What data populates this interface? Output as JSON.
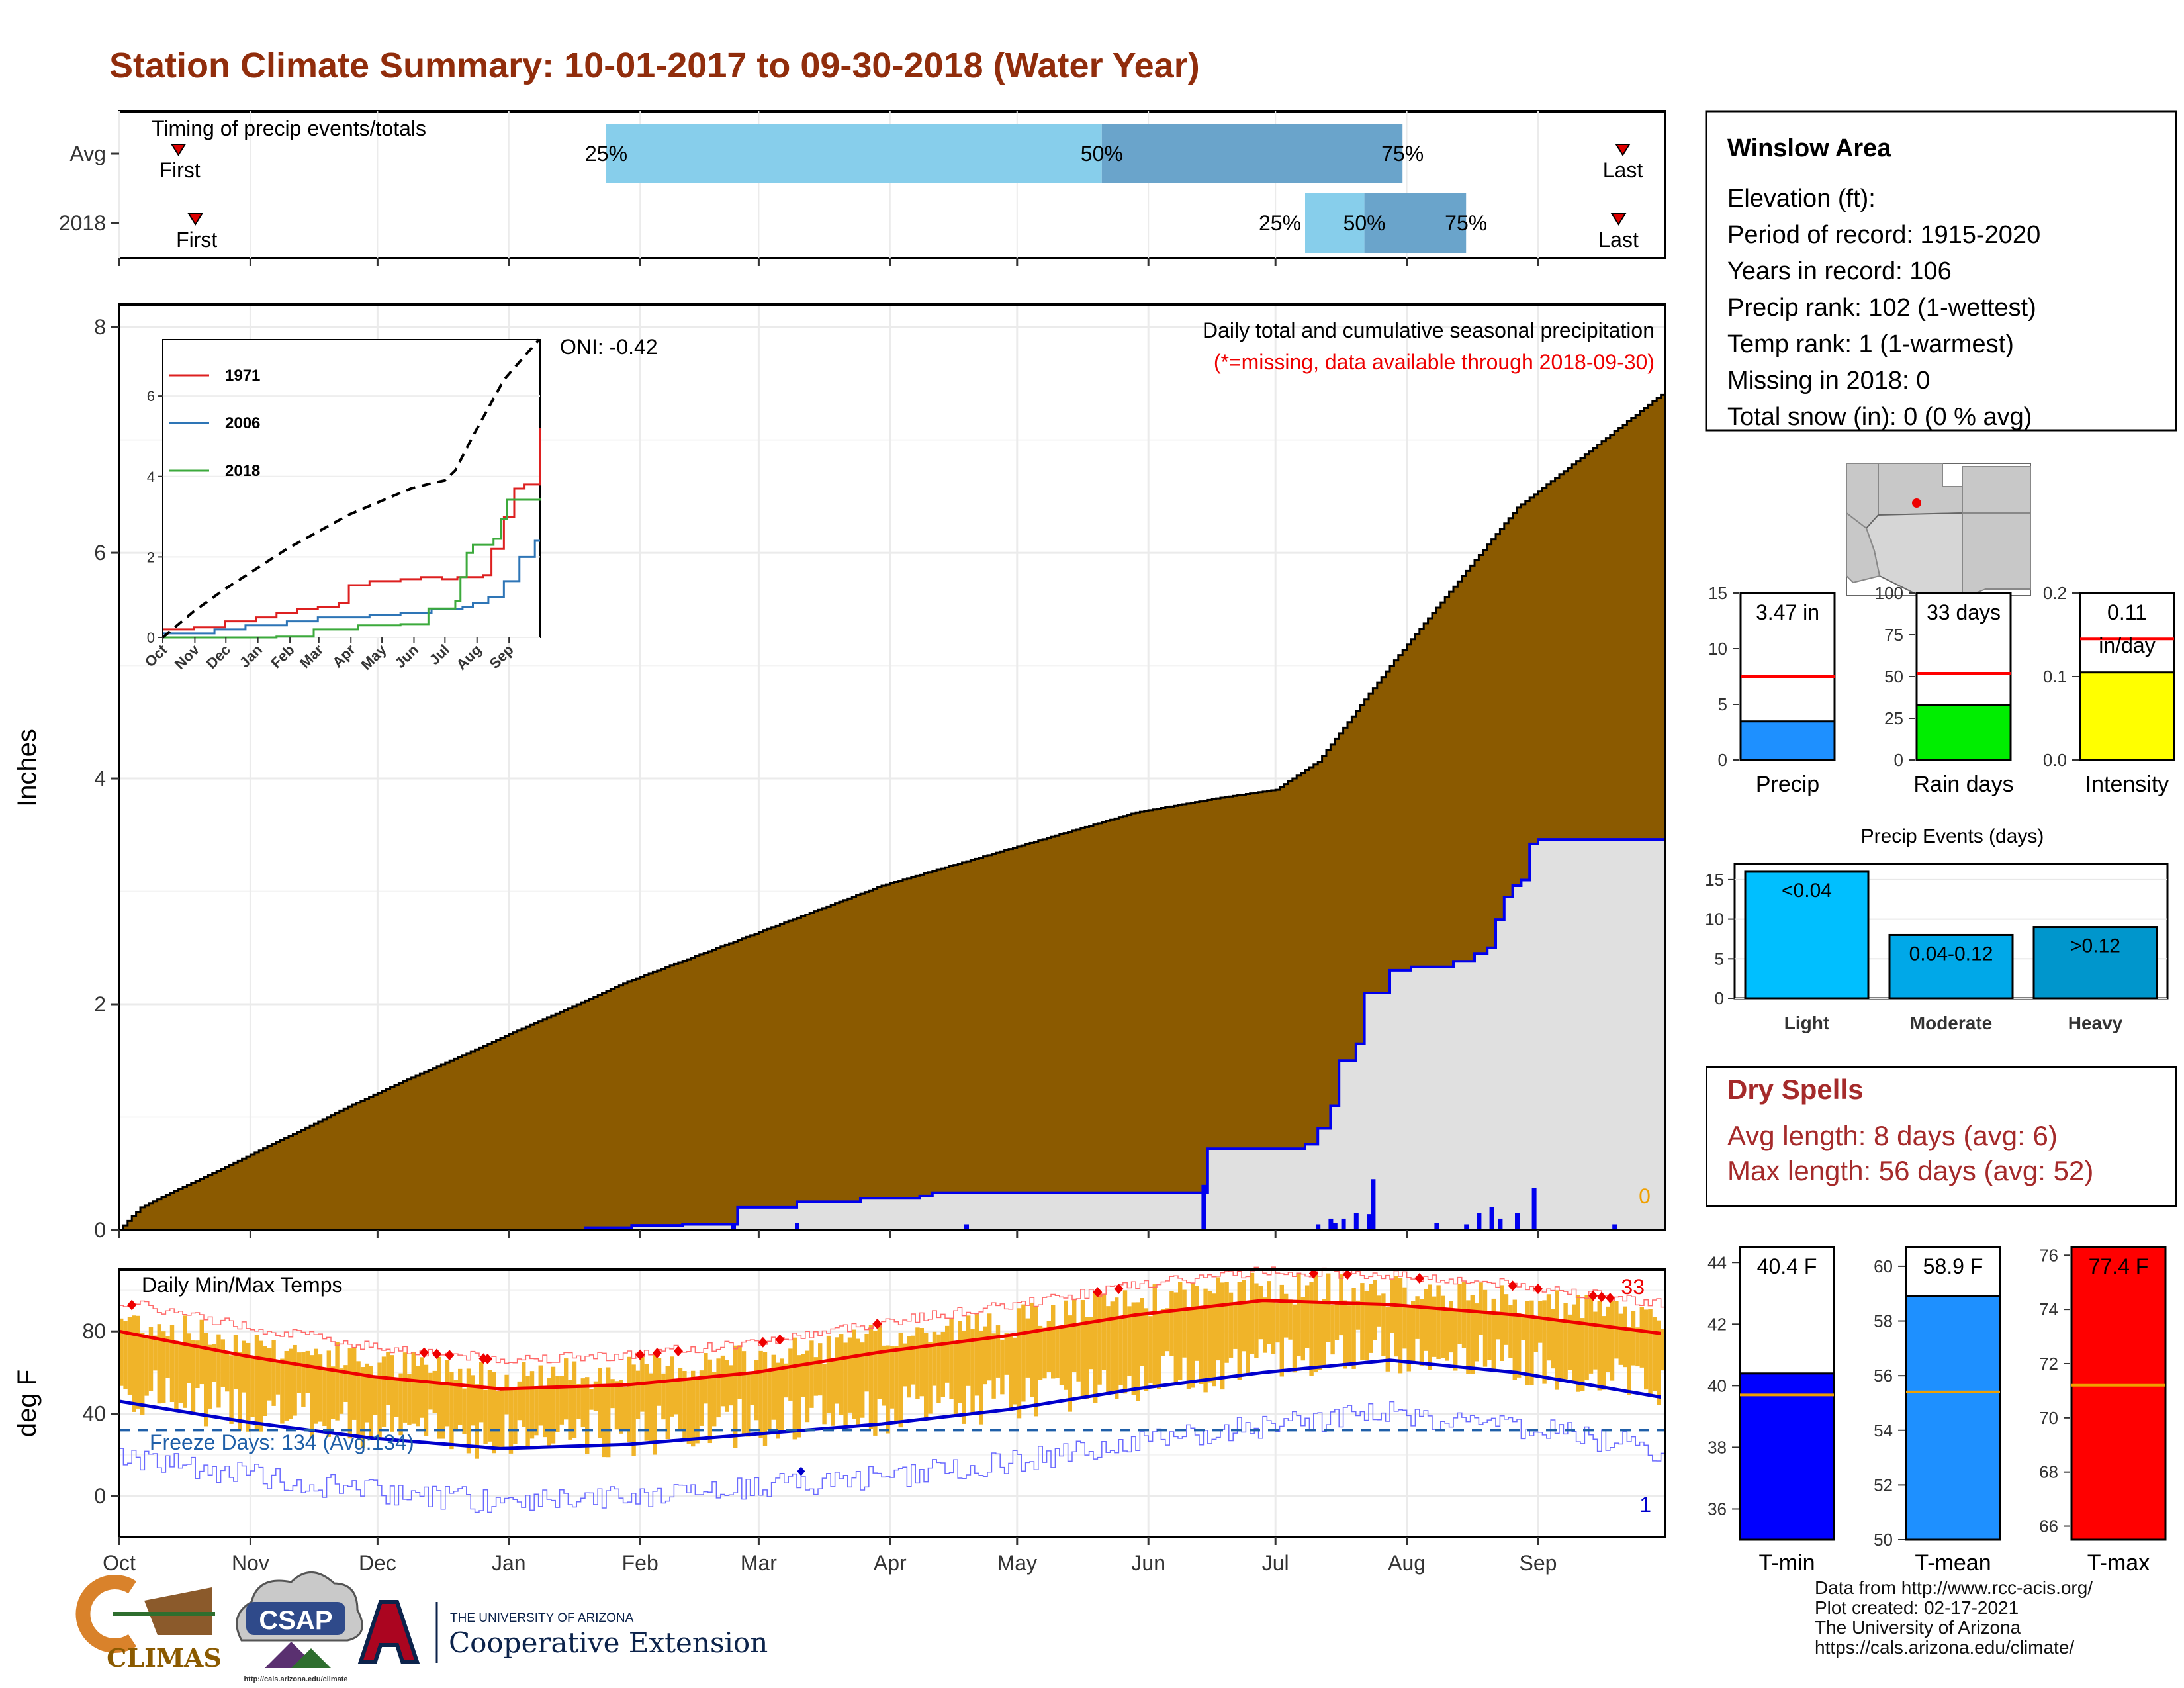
{
  "title": "Station Climate Summary: 10-01-2017 to 09-30-2018 (Water Year)",
  "chart_data": [
    {
      "id": "timing",
      "type": "bar",
      "title": "Timing of precip events/totals",
      "rows": [
        "Avg",
        "2018"
      ],
      "months": [
        "Oct",
        "Nov",
        "Dec",
        "Jan",
        "Feb",
        "Mar",
        "Apr",
        "May",
        "Jun",
        "Jul",
        "Aug",
        "Sep"
      ],
      "first_label": "First",
      "last_label": "Last",
      "pct_labels": [
        "25%",
        "50%",
        "75%"
      ],
      "events": [
        {
          "row": "Avg",
          "first_day": 14,
          "p25_day": 115,
          "p50_day": 232,
          "p75_day": 303,
          "last_day": 355
        },
        {
          "row": "2018",
          "first_day": 18,
          "p25_day": 280,
          "p50_day": 294,
          "p75_day": 318,
          "last_day": 354
        }
      ],
      "colors": {
        "p25_p50": "#87ceeb",
        "p50_p75": "#6aa4cb",
        "marker": "#dd0000"
      }
    },
    {
      "id": "main-precip",
      "type": "area",
      "title": "Daily total and cumulative seasonal precipitation",
      "note": "(*=missing, data available through 2018-09-30)",
      "oni": "ONI: -0.42",
      "ylabel": "Inches",
      "ylim": [
        0,
        8.2
      ],
      "yticks": [
        0,
        2,
        4,
        6,
        8
      ],
      "missing_count": "0",
      "avg_cumulative": {
        "day": [
          0,
          5,
          30,
          60,
          120,
          180,
          240,
          260,
          273,
          283,
          300,
          330,
          364
        ],
        "value": [
          0,
          0.2,
          0.65,
          1.2,
          2.2,
          3.05,
          3.7,
          3.83,
          3.9,
          4.15,
          5.0,
          6.4,
          7.4
        ]
      },
      "cumulative_2018": {
        "day": [
          0,
          50,
          110,
          121,
          133,
          146,
          160,
          175,
          189,
          192,
          206,
          230,
          255,
          257,
          278,
          280,
          283,
          286,
          288,
          292,
          294,
          296,
          300,
          305,
          315,
          320,
          323,
          325,
          327,
          329,
          331,
          333,
          335,
          365
        ],
        "value": [
          0,
          0.0,
          0.02,
          0.04,
          0.05,
          0.2,
          0.25,
          0.28,
          0.3,
          0.33,
          0.33,
          0.33,
          0.33,
          0.72,
          0.72,
          0.76,
          0.9,
          1.1,
          1.5,
          1.65,
          2.1,
          2.1,
          2.3,
          2.33,
          2.38,
          2.45,
          2.5,
          2.75,
          2.95,
          3.05,
          3.1,
          3.42,
          3.46,
          3.47
        ]
      },
      "daily_bars": {
        "day": [
          145,
          160,
          200,
          256,
          283,
          286,
          287,
          289,
          292,
          295,
          296,
          311,
          318,
          321,
          324,
          326,
          330,
          334,
          353
        ],
        "value": [
          0.05,
          0.06,
          0.05,
          0.4,
          0.05,
          0.1,
          0.06,
          0.1,
          0.15,
          0.14,
          0.45,
          0.06,
          0.05,
          0.15,
          0.2,
          0.1,
          0.15,
          0.37,
          0.05
        ]
      },
      "colors": {
        "avg_fill": "#8b5a00",
        "area_2018": "#e0e0e0",
        "line_2018": "#0000ee"
      }
    },
    {
      "id": "inset",
      "type": "line",
      "xticks": [
        "Oct",
        "Nov",
        "Dec",
        "Jan",
        "Feb",
        "Mar",
        "Apr",
        "May",
        "Jun",
        "Jul",
        "Aug",
        "Sep"
      ],
      "ylim": [
        0,
        7.4
      ],
      "yticks": [
        0,
        2,
        4,
        6
      ],
      "series": [
        {
          "name": "1971",
          "color": "#dd2020",
          "day": [
            0,
            30,
            60,
            90,
            110,
            130,
            150,
            170,
            180,
            200,
            230,
            250,
            270,
            285,
            300,
            310,
            318,
            330,
            340,
            350,
            362,
            365
          ],
          "value": [
            0.2,
            0.25,
            0.4,
            0.5,
            0.6,
            0.7,
            0.75,
            0.85,
            1.3,
            1.4,
            1.45,
            1.5,
            1.45,
            1.5,
            1.5,
            1.55,
            2.2,
            3.0,
            3.7,
            3.8,
            3.8,
            5.2
          ]
        },
        {
          "name": "2006",
          "color": "#2e75b6",
          "day": [
            0,
            50,
            80,
            120,
            150,
            200,
            230,
            260,
            290,
            300,
            315,
            330,
            345,
            360,
            365
          ],
          "value": [
            0.1,
            0.2,
            0.3,
            0.4,
            0.5,
            0.55,
            0.6,
            0.7,
            0.75,
            0.85,
            1.0,
            1.4,
            2.0,
            2.4,
            2.4
          ]
        },
        {
          "name": "2018",
          "color": "#3caa3c",
          "day": [
            0,
            110,
            146,
            189,
            230,
            257,
            278,
            283,
            288,
            294,
            300,
            320,
            327,
            333,
            365
          ],
          "value": [
            0.0,
            0.02,
            0.2,
            0.3,
            0.33,
            0.72,
            0.72,
            0.9,
            1.5,
            2.1,
            2.3,
            2.45,
            2.95,
            3.42,
            3.47
          ]
        },
        {
          "name": "avg",
          "color": "#000000",
          "day": [
            0,
            30,
            60,
            120,
            180,
            240,
            260,
            273,
            283,
            300,
            330,
            364
          ],
          "value": [
            0,
            0.65,
            1.2,
            2.2,
            3.05,
            3.7,
            3.83,
            3.9,
            4.15,
            5.0,
            6.4,
            7.4
          ]
        }
      ]
    },
    {
      "id": "temps",
      "type": "line",
      "title": "Daily Min/Max Temps",
      "ylabel": "deg F",
      "ylim": [
        -20,
        110
      ],
      "yticks": [
        0,
        40,
        80
      ],
      "freeze_label": "Freeze Days: 134 (Avg:134)",
      "record_high_count": "33",
      "record_low_count": "1",
      "freeze_line": 32,
      "xticks": [
        "Oct",
        "Nov",
        "Dec",
        "Jan",
        "Feb",
        "Mar",
        "Apr",
        "May",
        "Jun",
        "Jul",
        "Aug",
        "Sep"
      ],
      "avg_max": {
        "day": [
          0,
          30,
          60,
          90,
          120,
          150,
          180,
          210,
          240,
          270,
          300,
          330,
          364
        ],
        "value": [
          80,
          68,
          58,
          52,
          54,
          60,
          70,
          78,
          88,
          95,
          93,
          88,
          79
        ]
      },
      "avg_min": {
        "day": [
          0,
          30,
          60,
          90,
          120,
          150,
          180,
          210,
          240,
          270,
          300,
          330,
          364
        ],
        "value": [
          46,
          36,
          28,
          23,
          25,
          30,
          35,
          42,
          52,
          60,
          66,
          60,
          48
        ]
      },
      "colors": {
        "range": "#f0b429",
        "avg_max": "#ee0000",
        "avg_min": "#0000cc",
        "record": "#ee0000"
      }
    },
    {
      "id": "precip-summary",
      "type": "bar",
      "panels": [
        {
          "name": "Precip",
          "value": 3.47,
          "avg": 7.5,
          "label": "3.47 in",
          "ylim": [
            0,
            15
          ],
          "yticks": [
            0,
            5,
            10,
            15
          ],
          "color": "#1e90ff"
        },
        {
          "name": "Rain days",
          "value": 33,
          "avg": 52,
          "label": "33 days",
          "ylim": [
            0,
            100
          ],
          "yticks": [
            0,
            25,
            50,
            75,
            100
          ],
          "color": "#00ee00"
        },
        {
          "name": "Intensity",
          "value": 0.105,
          "avg": 0.145,
          "label": "0.11 in/day",
          "ylim": [
            0,
            0.2
          ],
          "yticks": [
            0.0,
            0.1,
            0.2
          ],
          "color": "#ffff00"
        }
      ]
    },
    {
      "id": "precip-events",
      "type": "bar",
      "title": "Precip Events (days)",
      "categories": [
        "Light",
        "Moderate",
        "Heavy"
      ],
      "bar_labels": [
        "<0.04",
        "0.04-0.12",
        ">0.12"
      ],
      "values": [
        16,
        8,
        9
      ],
      "ylim": [
        0,
        17
      ],
      "yticks": [
        0,
        5,
        10,
        15
      ],
      "colors": [
        "#00bfff",
        "#00a8e8",
        "#0096cc"
      ]
    },
    {
      "id": "temp-summary",
      "type": "bar",
      "panels": [
        {
          "name": "T-min",
          "value": 40.4,
          "avg": 39.7,
          "label": "40.4 F",
          "ylim": [
            35,
            44.5
          ],
          "yticks": [
            36,
            38,
            40,
            42,
            44
          ],
          "color": "#0000ff"
        },
        {
          "name": "T-mean",
          "value": 58.9,
          "avg": 55.4,
          "label": "58.9 F",
          "ylim": [
            50,
            60.7
          ],
          "yticks": [
            50,
            52,
            54,
            56,
            58,
            60
          ],
          "color": "#1e90ff"
        },
        {
          "name": "T-max",
          "value": 77.4,
          "avg": 71.2,
          "label": "77.4 F",
          "ylim": [
            65.5,
            76.3
          ],
          "yticks": [
            66,
            68,
            70,
            72,
            74,
            76
          ],
          "color": "#ff0000"
        }
      ]
    }
  ],
  "station": {
    "name": "Winslow Area",
    "lines": [
      "Elevation (ft):",
      "Period of record: 1915-2020",
      "Years in record: 106",
      "Precip rank: 102 (1-wettest)",
      "Temp rank: 1 (1-warmest)",
      "Missing in 2018: 0",
      "Total snow (in): 0 (0 % avg)"
    ]
  },
  "dry_spells": {
    "title": "Dry Spells",
    "avg_length": "Avg length: 8 days (avg: 6)",
    "max_length": "Max length: 56 days (avg: 52)",
    "color": "#a52a2a"
  },
  "footer": {
    "credits": [
      "Data from http://www.rcc-acis.org/",
      "Plot created: 02-17-2021",
      "The University of Arizona",
      "https://cals.arizona.edu/climate/"
    ],
    "logos": {
      "climas": "CLIMAS",
      "csap": "CSAP",
      "csap_url": "http://cals.arizona.edu/climate",
      "ua_line1": "THE UNIVERSITY OF ARIZONA",
      "ua_line2": "Cooperative Extension"
    }
  }
}
